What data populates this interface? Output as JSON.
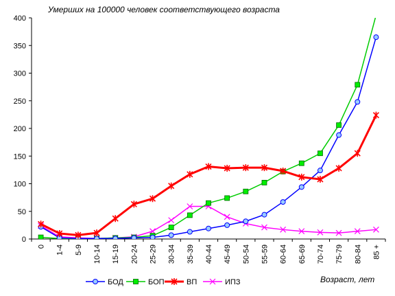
{
  "chart_data": {
    "type": "line",
    "title": "Умерших на 100000 человек соответствующего возраста",
    "xlabel": "Возраст, лет",
    "ylabel": "",
    "ylim": [
      0,
      400
    ],
    "yticks": [
      0,
      50,
      100,
      150,
      200,
      250,
      300,
      350,
      400
    ],
    "grid": false,
    "legend": "bottom",
    "categories": [
      "0",
      "1-4",
      "5-9",
      "10-14",
      "15-19",
      "20-24",
      "25-29",
      "30-34",
      "35-39",
      "40-44",
      "45-49",
      "50-54",
      "55-59",
      "60-64",
      "65-69",
      "70-74",
      "75-79",
      "80-84",
      "85 +"
    ],
    "series": [
      {
        "name": "БОД",
        "color": "#0000ff",
        "fill": "#99ccff",
        "marker": "circle",
        "values": [
          22,
          2,
          1,
          1,
          1,
          2,
          3,
          7,
          13,
          19,
          25,
          32,
          44,
          67,
          94,
          124,
          188,
          248,
          365
        ]
      },
      {
        "name": "БОП",
        "color": "#00cc00",
        "fill": "#00ee00",
        "marker": "square",
        "values": [
          3,
          1,
          1,
          1,
          2,
          3,
          6,
          21,
          43,
          65,
          74,
          86,
          102,
          122,
          137,
          155,
          206,
          279,
          405
        ]
      },
      {
        "name": "ВП",
        "color": "#ff0000",
        "marker": "star",
        "values": [
          27,
          10,
          7,
          11,
          37,
          63,
          73,
          96,
          117,
          131,
          128,
          129,
          129,
          123,
          112,
          108,
          128,
          155,
          224
        ]
      },
      {
        "name": "ИПЗ",
        "color": "#ff00ff",
        "marker": "x",
        "values": [
          24,
          4,
          2,
          1,
          2,
          4,
          14,
          34,
          59,
          59,
          40,
          28,
          21,
          17,
          14,
          12,
          11,
          14,
          17
        ]
      }
    ]
  }
}
